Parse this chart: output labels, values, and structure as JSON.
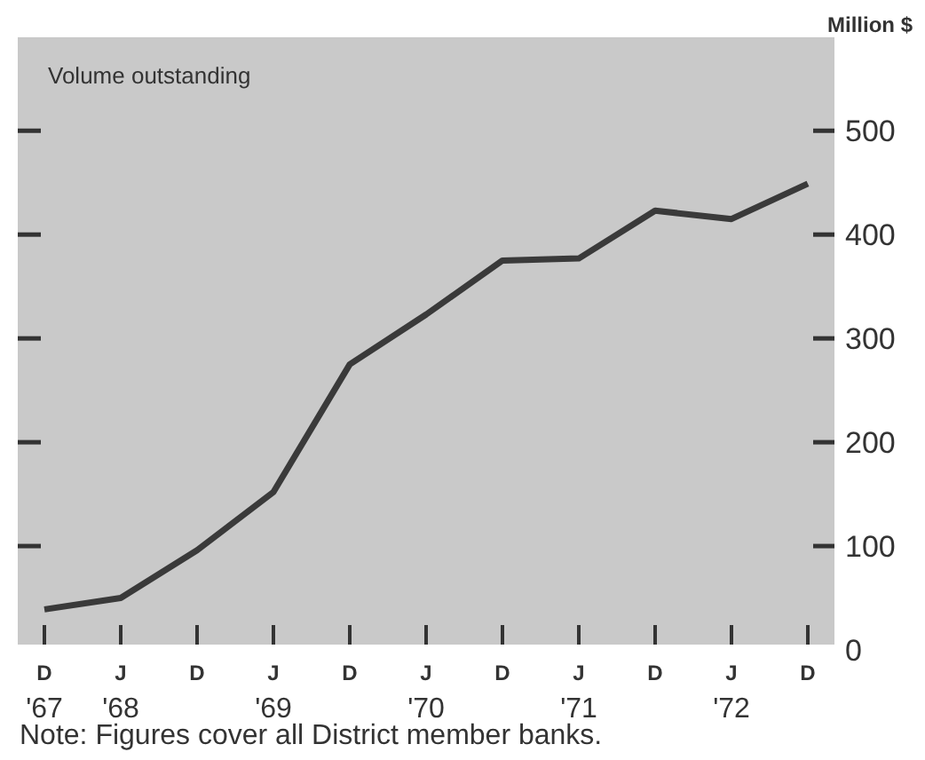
{
  "chart_data": {
    "type": "line",
    "title": "Volume outstanding",
    "ylabel": "Million $",
    "categories": [
      "D\n'67",
      "J\n'68",
      "D",
      "J\n'69",
      "D",
      "J\n'70",
      "D",
      "J\n'71",
      "D",
      "J\n'72",
      "D"
    ],
    "series": [
      {
        "color": "#3a3a3a",
        "values": [
          39,
          50,
          96,
          152,
          275,
          323,
          375,
          377,
          423,
          415,
          449
        ]
      }
    ],
    "ylim": [
      0,
      590
    ],
    "yticks": [
      0,
      100,
      200,
      300,
      400,
      500
    ],
    "annotations": [
      "Note:  Figures cover all District member banks."
    ]
  }
}
